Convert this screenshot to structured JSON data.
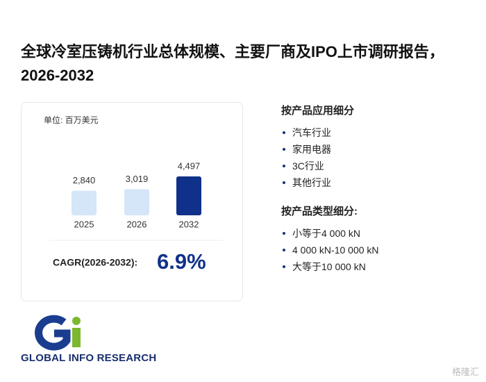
{
  "header": {
    "title": "全球冷室压铸机行业总体规模、主要厂商及IPO上市调研报告，2026-2032"
  },
  "chart": {
    "type": "bar",
    "unit_label": "单位: 百万美元",
    "categories": [
      "2025",
      "2026",
      "2032"
    ],
    "values": [
      2840,
      3019,
      4497
    ],
    "value_labels": [
      "2,840",
      "3,019",
      "4,497"
    ],
    "colors": [
      "#d4e6f8",
      "#d4e6f8",
      "#10318a"
    ],
    "cagr_label": "CAGR(2026-2032):",
    "cagr_value": "6.9%"
  },
  "segments": [
    {
      "heading": "按产品应用细分",
      "items": [
        "汽车行业",
        "家用电器",
        "3C行业",
        "其他行业"
      ]
    },
    {
      "heading": "按产品类型细分:",
      "items": [
        "小等于4 000 kN",
        "4 000 kN-10 000 kN",
        "大等于10 000 kN"
      ]
    }
  ],
  "logo": {
    "text": "GLOBAL INFO RESEARCH"
  },
  "watermark": {
    "text": "格隆汇"
  }
}
